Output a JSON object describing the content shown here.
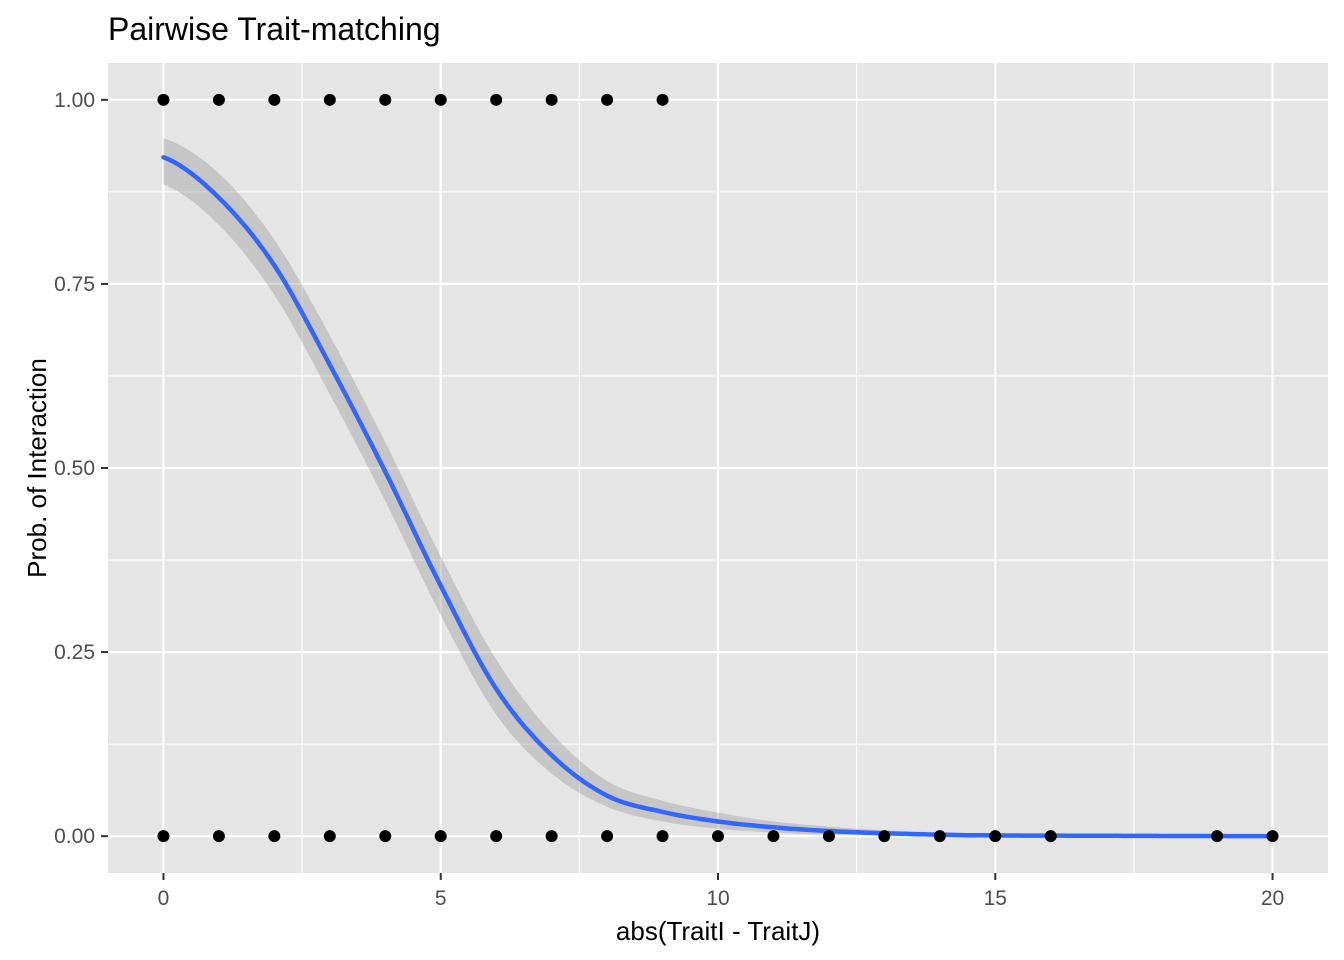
{
  "chart_data": {
    "type": "scatter",
    "title": "Pairwise Trait-matching",
    "xlabel": "abs(TraitI - TraitJ)",
    "ylabel": "Prob. of Interaction",
    "xlim": [
      -1,
      21
    ],
    "ylim": [
      -0.05,
      1.05
    ],
    "x_ticks": [
      0,
      5,
      10,
      15,
      20
    ],
    "x_tick_labels": [
      "0",
      "5",
      "10",
      "15",
      "20"
    ],
    "y_ticks": [
      0,
      0.25,
      0.5,
      0.75,
      1
    ],
    "y_tick_labels": [
      "0.00",
      "0.25",
      "0.50",
      "0.75",
      "1.00"
    ],
    "grid": true,
    "panel_background": "#e5e5e5",
    "grid_color": "#ffffff",
    "point_color": "#000000",
    "fit_line_color": "#3366ff",
    "ribbon_color": "#999999",
    "points": {
      "x": [
        0,
        1,
        2,
        3,
        4,
        5,
        6,
        7,
        8,
        9,
        0,
        1,
        2,
        3,
        4,
        5,
        6,
        7,
        8,
        9,
        10,
        11,
        12,
        13,
        14,
        15,
        16,
        19,
        20
      ],
      "y": [
        1,
        1,
        1,
        1,
        1,
        1,
        1,
        1,
        1,
        1,
        0,
        0,
        0,
        0,
        0,
        0,
        0,
        0,
        0,
        0,
        0,
        0,
        0,
        0,
        0,
        0,
        0,
        0,
        0
      ]
    },
    "fit": {
      "x": [
        0,
        1,
        2,
        3,
        4,
        5,
        6,
        7,
        8,
        9,
        10,
        11,
        12,
        13,
        14,
        15,
        16,
        17,
        18,
        19,
        20
      ],
      "y": [
        0.922,
        0.867,
        0.775,
        0.64,
        0.495,
        0.34,
        0.2,
        0.11,
        0.055,
        0.033,
        0.02,
        0.012,
        0.007,
        0.004,
        0.002,
        0.001,
        0.0008,
        0.0005,
        0.0003,
        0.0002,
        0.0001
      ],
      "lower": [
        0.885,
        0.83,
        0.735,
        0.6,
        0.455,
        0.3,
        0.165,
        0.085,
        0.04,
        0.02,
        0.01,
        0.005,
        0.002,
        0.001,
        0.0005,
        0.0002,
        0.0001,
        0.0,
        0.0,
        0.0,
        0.0
      ],
      "upper": [
        0.948,
        0.9,
        0.81,
        0.68,
        0.535,
        0.38,
        0.24,
        0.14,
        0.075,
        0.048,
        0.032,
        0.02,
        0.013,
        0.008,
        0.005,
        0.003,
        0.002,
        0.0015,
        0.001,
        0.0008,
        0.0006
      ]
    }
  }
}
